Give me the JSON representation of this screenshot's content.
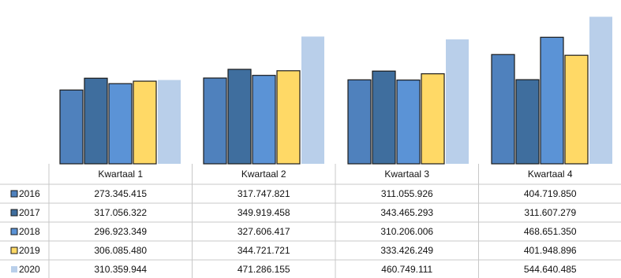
{
  "chart_data": {
    "type": "bar",
    "categories": [
      "Kwartaal 1",
      "Kwartaal 2",
      "Kwartaal 3",
      "Kwartaal 4"
    ],
    "series": [
      {
        "name": "2016",
        "values": [
          273345415,
          317747821,
          311055926,
          404719850
        ],
        "display": [
          "273.345.415",
          "317.747.821",
          "311.055.926",
          "404.719.850"
        ],
        "color": "#4f81bd"
      },
      {
        "name": "2017",
        "values": [
          317056322,
          349919458,
          343465293,
          311607279
        ],
        "display": [
          "317.056.322",
          "349.919.458",
          "343.465.293",
          "311.607.279"
        ],
        "color": "#3f6e9e"
      },
      {
        "name": "2018",
        "values": [
          296923349,
          327606417,
          310206006,
          468651350
        ],
        "display": [
          "296.923.349",
          "327.606.417",
          "310.206.006",
          "468.651.350"
        ],
        "color": "#5b93d6"
      },
      {
        "name": "2019",
        "values": [
          306085480,
          344721721,
          333426249,
          401948896
        ],
        "display": [
          "306.085.480",
          "344.721.721",
          "333.426.249",
          "401.948.896"
        ],
        "color": "#ffd966"
      },
      {
        "name": "2020",
        "values": [
          310359944,
          471286155,
          460749111,
          544640485
        ],
        "display": [
          "310.359.944",
          "471.286.155",
          "460.749.111",
          "544.640.485"
        ],
        "color": "#b9cfea"
      }
    ],
    "ylim": [
      0,
      560000000
    ],
    "grid": false,
    "legend": "table-left"
  }
}
